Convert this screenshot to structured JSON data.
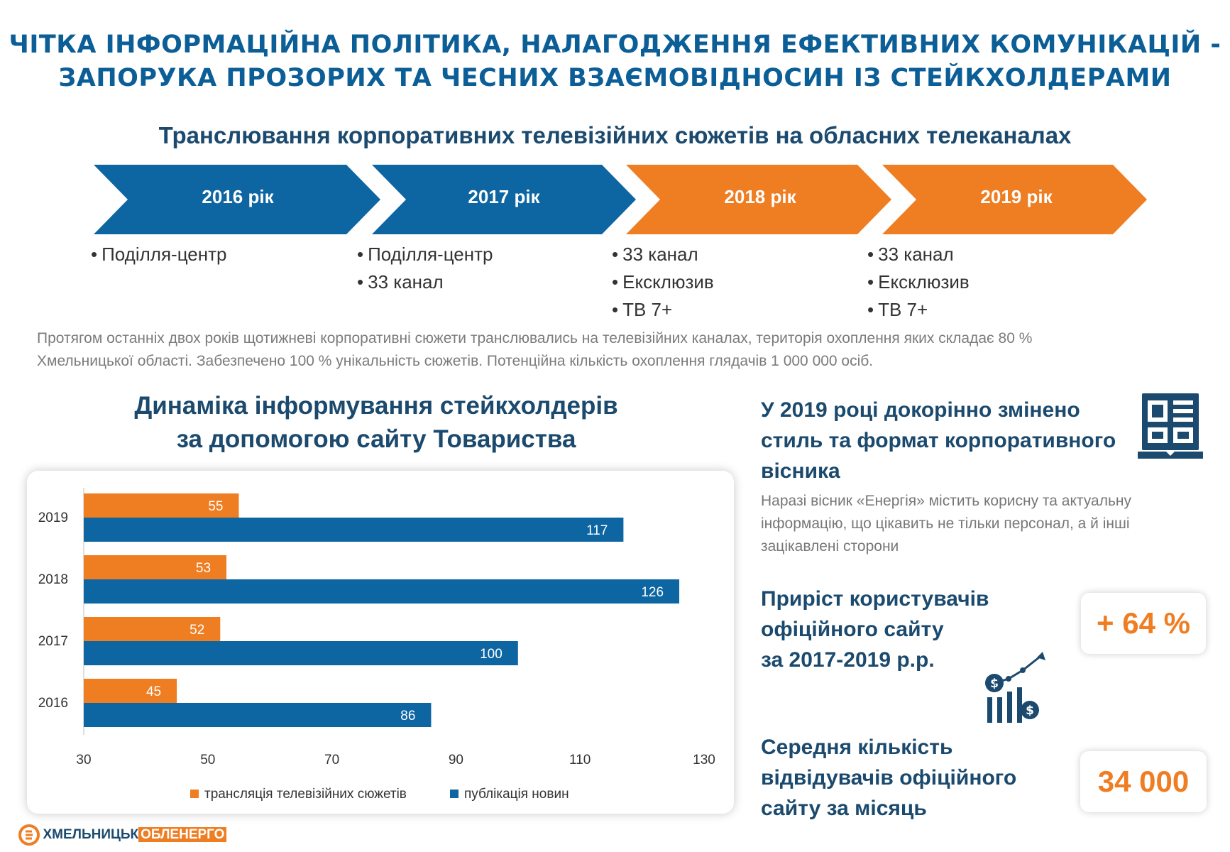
{
  "header": {
    "title_line1": "ЧІТКА ІНФОРМАЦІЙНА ПОЛІТИКА, НАЛАГОДЖЕННЯ ЕФЕКТИВНИХ КОМУНІКАЦІЙ -",
    "title_line2": "ЗАПОРУКА ПРОЗОРИХ ТА ЧЕСНИХ ВЗАЄМОВІДНОСИН ІЗ  СТЕЙКХОЛДЕРАМИ"
  },
  "broadcast": {
    "title": "Транслювання корпоративних телевізійних сюжетів на обласних телеканалах",
    "years": [
      {
        "label": "2016 рік",
        "color": "#0d65a2",
        "channels": [
          "Поділля-центр"
        ]
      },
      {
        "label": "2017 рік",
        "color": "#0d65a2",
        "channels": [
          "Поділля-центр",
          "33 канал"
        ]
      },
      {
        "label": "2018 рік",
        "color": "#ef7d22",
        "channels": [
          "33 канал",
          "Ексклюзив",
          "ТВ 7+"
        ]
      },
      {
        "label": "2019 рік",
        "color": "#ef7d22",
        "channels": [
          "33 канал",
          "Ексклюзив",
          "ТВ 7+"
        ]
      }
    ],
    "note_line1": "Протягом останніх двох років щотижневі корпоративні сюжети транслювались на телевізійних каналах, територія охоплення яких складає 80 %",
    "note_line2": "Хмельницької області. Забезпечено 100 % унікальність сюжетів. Потенційна кількість охоплення глядачів 1 000 000 осіб."
  },
  "chart_section": {
    "title_line1": "Динаміка інформування стейкхолдерів",
    "title_line2": "за допомогою сайту Товариства"
  },
  "chart_data": {
    "type": "bar",
    "orientation": "horizontal",
    "categories": [
      "2019",
      "2018",
      "2017",
      "2016"
    ],
    "series": [
      {
        "name": "трансляція телевізійних сюжетів",
        "color": "#ef7d22",
        "values": [
          55,
          53,
          52,
          45
        ]
      },
      {
        "name": "публікація новин",
        "color": "#0d65a2",
        "values": [
          117,
          126,
          100,
          86
        ]
      }
    ],
    "xlim": [
      30,
      130
    ],
    "xticks": [
      30,
      50,
      70,
      90,
      110,
      130
    ],
    "legend": "bottom",
    "grid": false
  },
  "bulletin": {
    "title_line1": "У 2019 році докорінно змінено",
    "title_line2": "стиль та формат корпоративного",
    "title_line3": "вісника",
    "text_line1": "Наразі вісник «Енергія» містить корисну та актуальну",
    "text_line2": "інформацію, що цікавить не тільки персонал, а й інші",
    "text_line3": "зацікавлені сторони",
    "icon": "newspaper-icon"
  },
  "growth": {
    "title_line1": "Приріст користувачів",
    "title_line2": "офіційного сайту",
    "title_line3": "за 2017-2019 р.р.",
    "value": "+ 64 %",
    "icon": "growth-chart-icon"
  },
  "visitors": {
    "title_line1": "Середня кількість",
    "title_line2": "відвідувачів офіційного",
    "title_line3": "сайту за місяць",
    "value": "34 000"
  },
  "logo": {
    "part1": "ХМЕЛЬНИЦЬК",
    "part2": "ОБЛЕНЕРГО"
  }
}
